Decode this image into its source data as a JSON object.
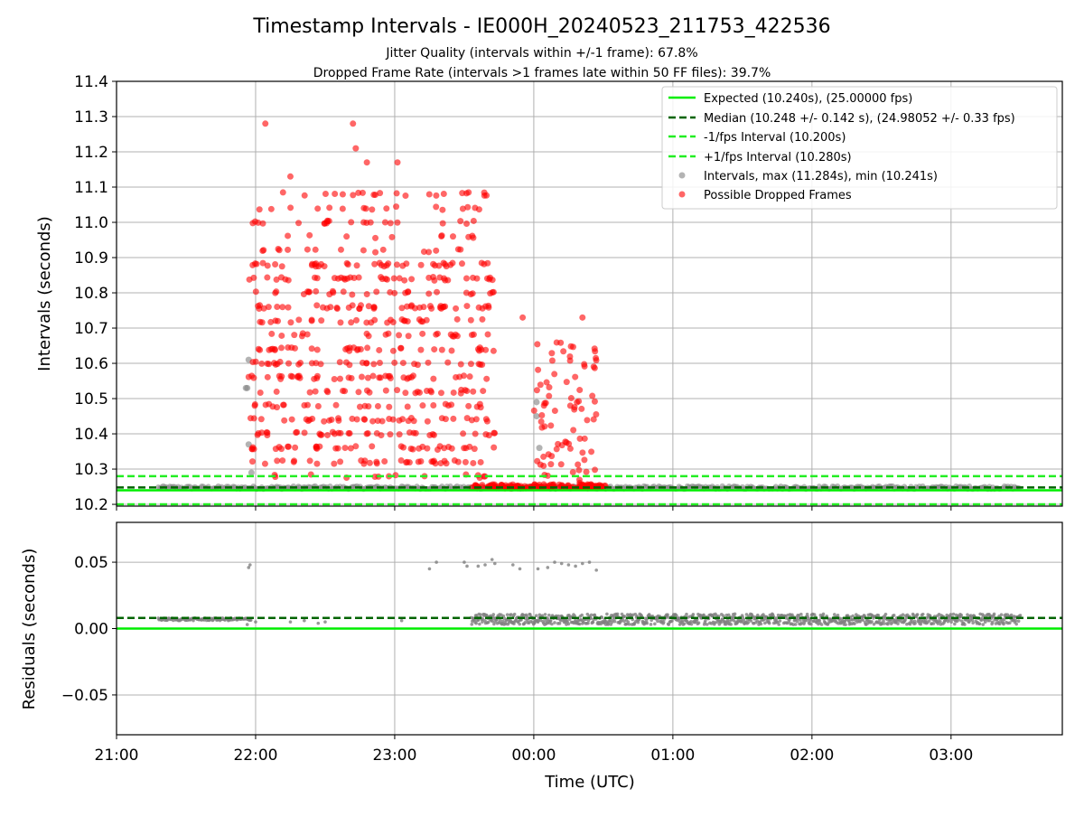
{
  "chart_data": {
    "type": "scatter",
    "title": "Timestamp Intervals - IE000H_20240523_211753_422536",
    "subtitle1": "Jitter Quality (intervals within +/-1 frame): 67.8%",
    "subtitle2": "Dropped Frame Rate (intervals >1 frames late within 50 FF files): 39.7%",
    "xlabel": "Time (UTC)",
    "x_ticks": [
      "21:00",
      "22:00",
      "23:00",
      "00:00",
      "01:00",
      "02:00",
      "03:00"
    ],
    "x_range_hours": [
      21.0,
      27.8
    ],
    "top": {
      "ylabel": "Intervals (seconds)",
      "ylim": [
        10.195,
        11.4
      ],
      "yticks": [
        "10.2",
        "10.3",
        "10.4",
        "10.5",
        "10.6",
        "10.7",
        "10.8",
        "10.9",
        "11.0",
        "11.1",
        "11.2",
        "11.3",
        "11.4"
      ],
      "expected": 10.24,
      "median": 10.248,
      "minus_fps": 10.2,
      "plus_fps": 10.28,
      "legend": [
        "Expected (10.240s), (25.00000 fps)",
        "Median (10.248 +/- 0.142 s), (24.98052 +/- 0.33 fps)",
        "-1/fps Interval (10.200s)",
        "+1/fps Interval (10.280s)",
        "Intervals, max (11.284s), min (10.241s)",
        "Possible Dropped Frames"
      ],
      "grid": true,
      "legend_position": "upper right"
    },
    "bottom": {
      "ylabel": "Residuals (seconds)",
      "ylim": [
        -0.08,
        0.08
      ],
      "yticks": [
        "−0.05",
        "0.00",
        "0.05"
      ],
      "expected_residual": 0.0,
      "median_residual": 0.008,
      "grid": true
    },
    "colors": {
      "expected": "#00ee00",
      "median": "#006400",
      "fps_bounds": "#22ee22",
      "intervals": "#808080",
      "dropped": "#ff0000"
    },
    "series_summary": {
      "intervals_normal_band": [
        10.241,
        10.252
      ],
      "intervals_max": 11.284,
      "dropped_frames_time_range_hours": [
        21.95,
        24.55
      ],
      "dropped_frames_value_range": [
        10.25,
        11.284
      ],
      "data_time_range_hours": [
        21.3,
        27.5
      ]
    }
  }
}
